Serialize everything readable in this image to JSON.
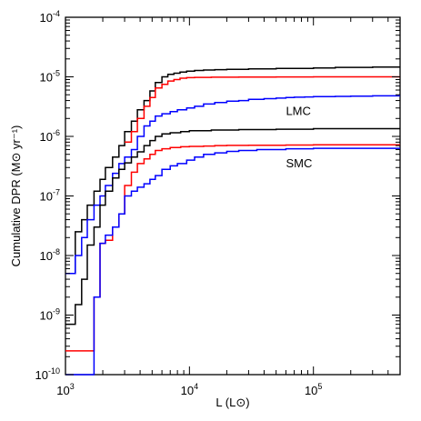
{
  "chart_data": {
    "type": "line",
    "line_shape": "step",
    "x_scale": "log",
    "y_scale": "log",
    "xlim": [
      1000,
      500000
    ],
    "ylim": [
      1e-10,
      0.0001
    ],
    "xlabel": "L (L⊙)",
    "ylabel": "Cumulative DPR (M⊙ yr⁻¹)",
    "x_tick_labels": [
      {
        "base": "10",
        "exp": "3",
        "value": 1000
      },
      {
        "base": "10",
        "exp": "4",
        "value": 10000
      },
      {
        "base": "10",
        "exp": "5",
        "value": 100000
      }
    ],
    "y_tick_labels": [
      {
        "base": "10",
        "exp": "-4",
        "value": 0.0001
      },
      {
        "base": "10",
        "exp": "-5",
        "value": 1e-05
      },
      {
        "base": "10",
        "exp": "-6",
        "value": 1e-06
      },
      {
        "base": "10",
        "exp": "-7",
        "value": 1e-07
      },
      {
        "base": "10",
        "exp": "-8",
        "value": 1e-08
      },
      {
        "base": "10",
        "exp": "-9",
        "value": 1e-09
      },
      {
        "base": "10",
        "exp": "-10",
        "value": 1e-10
      }
    ],
    "annotations": [
      {
        "text": "LMC",
        "x": 60000,
        "y": 2.3e-06
      },
      {
        "text": "SMC",
        "x": 60000,
        "y": 3e-07
      }
    ],
    "series": [
      {
        "color": "#000000",
        "group": "LMC",
        "x": [
          1000,
          1200,
          1350,
          1500,
          1700,
          1900,
          2100,
          2400,
          2700,
          3000,
          3400,
          3800,
          4300,
          4800,
          5300,
          6000,
          6700,
          7500,
          8400,
          9500,
          11000,
          13000,
          16000,
          20000,
          30000,
          50000,
          100000,
          150000,
          300000,
          500000
        ],
        "y": [
          5e-09,
          2.5e-08,
          4e-08,
          7e-08,
          1.2e-07,
          1.9e-07,
          3e-07,
          4.5e-07,
          7e-07,
          1.2e-06,
          1.8e-06,
          2.8e-06,
          4e-06,
          5.8e-06,
          8e-06,
          1e-05,
          1.1e-05,
          1.15e-05,
          1.2e-05,
          1.25e-05,
          1.28e-05,
          1.3e-05,
          1.32e-05,
          1.34e-05,
          1.36e-05,
          1.38e-05,
          1.41e-05,
          1.44e-05,
          1.46e-05,
          1.46e-05
        ]
      },
      {
        "color": "#ff0000",
        "group": "LMC",
        "x": [
          3000,
          3400,
          3800,
          4300,
          4800,
          5300,
          6000,
          6700,
          7500,
          8400,
          9500,
          11000,
          15000,
          25000,
          50000,
          100000,
          500000
        ],
        "y": [
          8e-07,
          1.2e-06,
          2e-06,
          3.2e-06,
          4.5e-06,
          6.5e-06,
          7.5e-06,
          8.5e-06,
          9e-06,
          9.5e-06,
          9.7e-06,
          9.8e-06,
          9.85e-06,
          9.9e-06,
          9.95e-06,
          1e-05,
          1e-05
        ]
      },
      {
        "color": "#0000ff",
        "group": "LMC",
        "x": [
          1000,
          1200,
          1350,
          1500,
          1700,
          1900,
          2100,
          2400,
          2700,
          3000,
          3400,
          3800,
          4300,
          4800,
          5300,
          6000,
          7000,
          8000,
          9500,
          11000,
          13000,
          16000,
          20000,
          25000,
          30000,
          40000,
          50000,
          60000,
          70000,
          85000,
          100000,
          150000,
          200000,
          300000,
          500000
        ],
        "y": [
          5e-09,
          1e-08,
          2e-08,
          4e-08,
          7e-08,
          1e-07,
          1.5e-07,
          2.4e-07,
          3.5e-07,
          4.5e-07,
          6e-07,
          1e-06,
          1.5e-06,
          1.8e-06,
          2.2e-06,
          2.4e-06,
          2.6e-06,
          2.8e-06,
          3e-06,
          3.2e-06,
          3.5e-06,
          3.7e-06,
          3.9e-06,
          4e-06,
          4.2e-06,
          4.3e-06,
          4.4e-06,
          4.5e-06,
          4.55e-06,
          4.6e-06,
          4.65e-06,
          4.7e-06,
          4.75e-06,
          4.8e-06,
          4.8e-06
        ]
      },
      {
        "color": "#000000",
        "group": "SMC",
        "x": [
          1000,
          1200,
          1350,
          1500,
          1700,
          1900,
          2100,
          2400,
          2700,
          3000,
          3400,
          3800,
          4300,
          4800,
          5300,
          6000,
          7000,
          8500,
          10000,
          15000,
          25000,
          50000,
          100000,
          500000
        ],
        "y": [
          7e-10,
          1.5e-09,
          4e-09,
          1.5e-08,
          3e-08,
          7e-08,
          1.2e-07,
          2e-07,
          2.8e-07,
          3.6e-07,
          4.5e-07,
          5.5e-07,
          7e-07,
          8.5e-07,
          1e-06,
          1.1e-06,
          1.15e-06,
          1.2e-06,
          1.25e-06,
          1.28e-06,
          1.3e-06,
          1.32e-06,
          1.35e-06,
          1.35e-06
        ]
      },
      {
        "color": "#ff0000",
        "group": "SMC",
        "x": [
          1000,
          1700,
          1900,
          2100,
          2400,
          2700,
          3000,
          3400,
          3800,
          4300,
          4800,
          5300,
          6000,
          7000,
          8500,
          10000,
          13000,
          16000,
          20000,
          30000,
          40000,
          60000,
          100000,
          500000
        ],
        "y": [
          2.5e-10,
          2e-09,
          1.6e-08,
          1.8e-08,
          3e-08,
          5e-08,
          1.5e-07,
          2.5e-07,
          3.5e-07,
          4.2e-07,
          5e-07,
          5.8e-07,
          6.2e-07,
          6.5e-07,
          6.7e-07,
          6.8e-07,
          6.9e-07,
          7e-07,
          7.05e-07,
          7.1e-07,
          7.12e-07,
          7.15e-07,
          7.2e-07,
          7.2e-07
        ]
      },
      {
        "color": "#0000ff",
        "group": "SMC",
        "x": [
          1000,
          1700,
          1900,
          2100,
          2400,
          2700,
          3000,
          3400,
          3800,
          4300,
          4800,
          5300,
          6000,
          7000,
          8000,
          9500,
          11000,
          13000,
          16000,
          20000,
          25000,
          35000,
          60000,
          100000,
          500000
        ],
        "y": [
          1e-10,
          2e-09,
          1.6e-08,
          2.2e-08,
          3e-08,
          5e-08,
          1e-07,
          1.2e-07,
          1.4e-07,
          1.6e-07,
          1.9e-07,
          2.2e-07,
          2.8e-07,
          3.2e-07,
          3.5e-07,
          4e-07,
          4.5e-07,
          5e-07,
          5.3e-07,
          5.6e-07,
          5.8e-07,
          6e-07,
          6.2e-07,
          6.3e-07,
          6.3e-07
        ]
      }
    ]
  }
}
